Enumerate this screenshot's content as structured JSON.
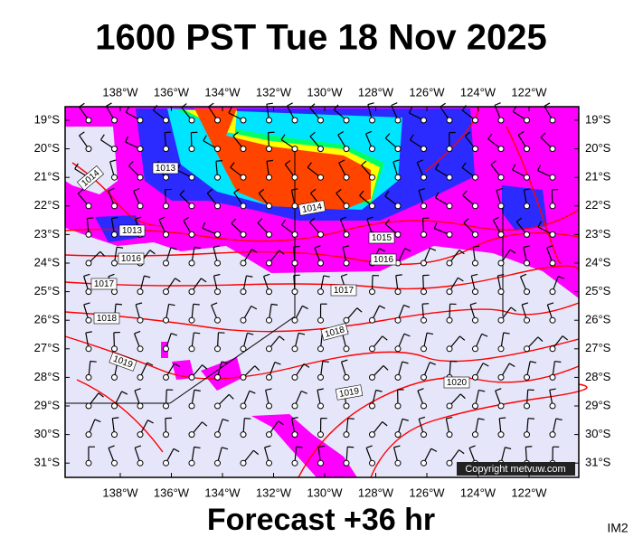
{
  "title": "1600 PST Tue 18 Nov 2025",
  "footer": "Forecast +36 hr",
  "corner_label": "IM2",
  "copyright": "Copyright metvuw.com",
  "map": {
    "longitude_labels": [
      "138°W",
      "136°W",
      "134°W",
      "132°W",
      "130°W",
      "128°W",
      "126°W",
      "124°W",
      "122°W"
    ],
    "latitude_labels": [
      "19°S",
      "20°S",
      "21°S",
      "22°S",
      "23°S",
      "24°S",
      "25°S",
      "26°S",
      "27°S",
      "28°S",
      "29°S",
      "30°S",
      "31°S"
    ],
    "isobar_labels": [
      "1014",
      "1013",
      "1013",
      "1016",
      "1017",
      "1018",
      "1019",
      "1014",
      "1015",
      "1016",
      "1017",
      "1018",
      "1019",
      "1020"
    ]
  }
}
